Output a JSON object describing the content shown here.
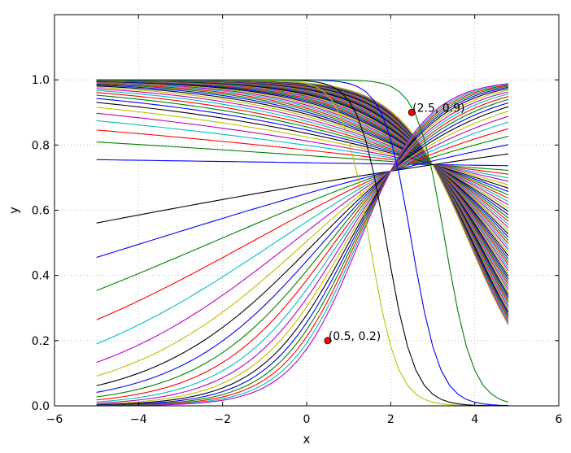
{
  "chart_data": {
    "type": "line",
    "title": "",
    "xlabel": "x",
    "ylabel": "y",
    "xlim": [
      -6,
      6
    ],
    "ylim": [
      0,
      1.2
    ],
    "xticks": [
      -6,
      -4,
      -2,
      0,
      2,
      4,
      6
    ],
    "yticks": [
      0.0,
      0.2,
      0.4,
      0.6,
      0.8,
      1.0
    ],
    "xtick_labels": [
      "−6",
      "−4",
      "−2",
      "0",
      "2",
      "4",
      "6"
    ],
    "ytick_labels": [
      "0.0",
      "0.2",
      "0.4",
      "0.6",
      "0.8",
      "1.0"
    ],
    "grid": true,
    "legend": "none",
    "x_range": [
      -5,
      4.8
    ],
    "x_step": 0.2,
    "families": [
      {
        "kind": "increasing logistic curves crossing near (2, 0.72)",
        "count": 20,
        "center": 2.0,
        "slope_range": [
          0.1,
          1.25
        ],
        "y_at_center": 0.72
      },
      {
        "kind": "decreasing logistic curves crossing near (3, 0.74), many overlapping",
        "count": 55,
        "center": 3.0,
        "slope_range": [
          0.01,
          1.2
        ],
        "y_at_center": 0.74
      },
      {
        "kind": "decreasing logistic curves with left-shifted centers",
        "count": 4,
        "centers": [
          1.5,
          1.9,
          2.5,
          3.3
        ],
        "slope": 3.0
      }
    ],
    "color_cycle": [
      "#0000ff",
      "#008000",
      "#ff0000",
      "#00bfbf",
      "#bf00bf",
      "#bfbf00",
      "#000000"
    ],
    "annotations": [
      {
        "x": 0.5,
        "y": 0.2,
        "label": "(0.5, 0.2)",
        "marker_color": "#ff0000"
      },
      {
        "x": 2.5,
        "y": 0.9,
        "label": "(2.5, 0.9)",
        "marker_color": "#ff0000"
      }
    ]
  }
}
